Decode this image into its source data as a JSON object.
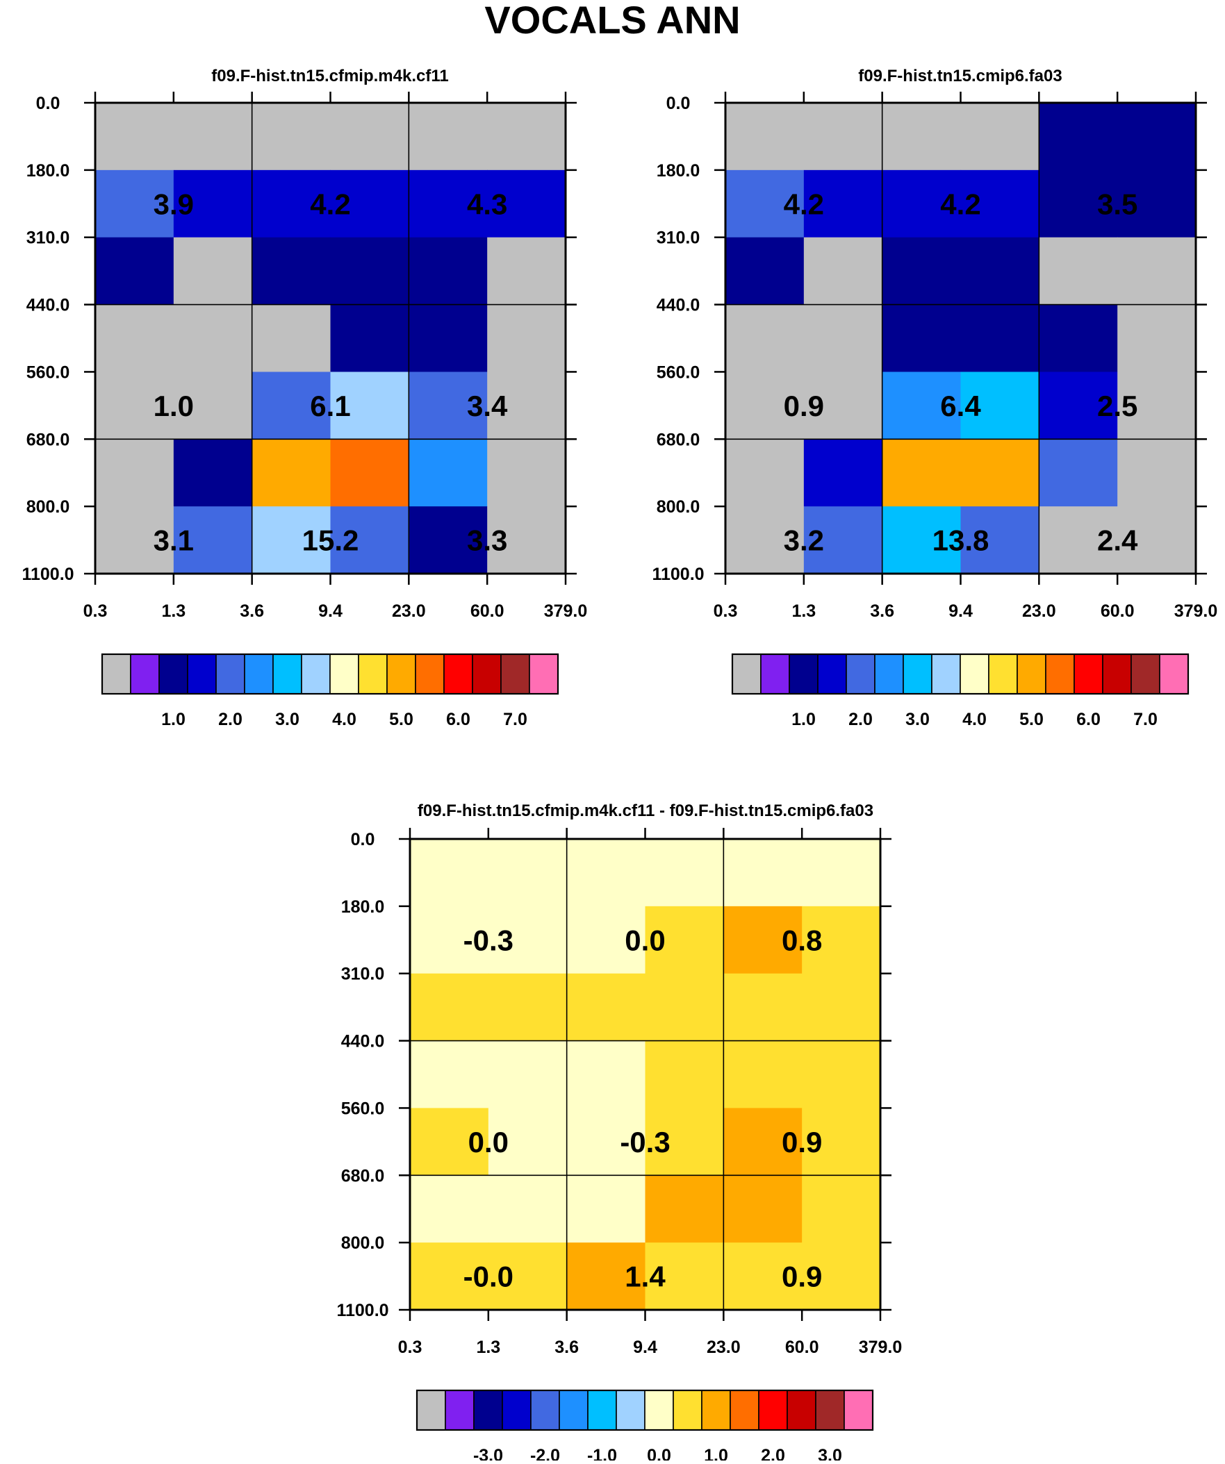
{
  "figure_title": "VOCALS ANN",
  "chart_data": [
    {
      "type": "heatmap",
      "id": "p1",
      "title": "f09.F-hist.tn15.cfmip.m4k.cf11",
      "xticks": [
        "0.3",
        "1.3",
        "3.6",
        "9.4",
        "23.0",
        "60.0",
        "379.0"
      ],
      "yticks": [
        "0.0",
        "180.0",
        "310.0",
        "440.0",
        "560.0",
        "680.0",
        "800.0",
        "1100.0"
      ],
      "cells": [
        [
          0,
          0,
          0,
          0,
          0,
          0
        ],
        [
          4,
          3,
          3,
          3,
          3,
          3
        ],
        [
          2,
          0,
          2,
          2,
          2,
          0
        ],
        [
          0,
          0,
          0,
          2,
          2,
          0
        ],
        [
          0,
          0,
          4,
          7,
          4,
          0
        ],
        [
          0,
          2,
          10,
          11,
          5,
          0
        ],
        [
          0,
          4,
          7,
          4,
          2,
          0
        ]
      ],
      "labels": [
        {
          "row": 1,
          "col": 1,
          "text": "3.9"
        },
        {
          "row": 1,
          "col": 3,
          "text": "4.2"
        },
        {
          "row": 1,
          "col": 5,
          "text": "4.3"
        },
        {
          "row": 4,
          "col": 1,
          "text": "1.0"
        },
        {
          "row": 4,
          "col": 3,
          "text": "6.1"
        },
        {
          "row": 4,
          "col": 5,
          "text": "3.4"
        },
        {
          "row": 6,
          "col": 1,
          "text": "3.1"
        },
        {
          "row": 6,
          "col": 3,
          "text": "15.2"
        },
        {
          "row": 6,
          "col": 5,
          "text": "3.3"
        }
      ],
      "colorbar": {
        "labels": [
          "1.0",
          "2.0",
          "3.0",
          "4.0",
          "5.0",
          "6.0",
          "7.0"
        ]
      }
    },
    {
      "type": "heatmap",
      "id": "p2",
      "title": "f09.F-hist.tn15.cmip6.fa03",
      "xticks": [
        "0.3",
        "1.3",
        "3.6",
        "9.4",
        "23.0",
        "60.0",
        "379.0"
      ],
      "yticks": [
        "0.0",
        "180.0",
        "310.0",
        "440.0",
        "560.0",
        "680.0",
        "800.0",
        "1100.0"
      ],
      "cells": [
        [
          0,
          0,
          0,
          0,
          2,
          2
        ],
        [
          4,
          3,
          3,
          3,
          2,
          2
        ],
        [
          2,
          0,
          2,
          2,
          0,
          0
        ],
        [
          0,
          0,
          2,
          2,
          2,
          0
        ],
        [
          0,
          0,
          5,
          6,
          3,
          0
        ],
        [
          0,
          3,
          10,
          10,
          4,
          0
        ],
        [
          0,
          4,
          6,
          4,
          0,
          0
        ]
      ],
      "labels": [
        {
          "row": 1,
          "col": 1,
          "text": "4.2"
        },
        {
          "row": 1,
          "col": 3,
          "text": "4.2"
        },
        {
          "row": 1,
          "col": 5,
          "text": "3.5"
        },
        {
          "row": 4,
          "col": 1,
          "text": "0.9"
        },
        {
          "row": 4,
          "col": 3,
          "text": "6.4"
        },
        {
          "row": 4,
          "col": 5,
          "text": "2.5"
        },
        {
          "row": 6,
          "col": 1,
          "text": "3.2"
        },
        {
          "row": 6,
          "col": 3,
          "text": "13.8"
        },
        {
          "row": 6,
          "col": 5,
          "text": "2.4"
        }
      ],
      "colorbar": {
        "labels": [
          "1.0",
          "2.0",
          "3.0",
          "4.0",
          "5.0",
          "6.0",
          "7.0"
        ]
      }
    },
    {
      "type": "heatmap",
      "id": "p3",
      "title": "f09.F-hist.tn15.cfmip.m4k.cf11 - f09.F-hist.tn15.cmip6.fa03",
      "xticks": [
        "0.3",
        "1.3",
        "3.6",
        "9.4",
        "23.0",
        "60.0",
        "379.0"
      ],
      "yticks": [
        "0.0",
        "180.0",
        "310.0",
        "440.0",
        "560.0",
        "680.0",
        "800.0",
        "1100.0"
      ],
      "cells": [
        [
          8,
          8,
          8,
          8,
          8,
          8
        ],
        [
          8,
          8,
          8,
          9,
          10,
          9
        ],
        [
          9,
          9,
          9,
          9,
          9,
          9
        ],
        [
          8,
          8,
          8,
          9,
          9,
          9
        ],
        [
          9,
          8,
          8,
          9,
          10,
          9
        ],
        [
          8,
          8,
          8,
          10,
          10,
          9
        ],
        [
          9,
          9,
          10,
          9,
          9,
          9
        ]
      ],
      "labels": [
        {
          "row": 1,
          "col": 1,
          "text": "-0.3"
        },
        {
          "row": 1,
          "col": 3,
          "text": "0.0"
        },
        {
          "row": 1,
          "col": 5,
          "text": "0.8"
        },
        {
          "row": 4,
          "col": 1,
          "text": "0.0"
        },
        {
          "row": 4,
          "col": 3,
          "text": "-0.3"
        },
        {
          "row": 4,
          "col": 5,
          "text": "0.9"
        },
        {
          "row": 6,
          "col": 1,
          "text": "-0.0"
        },
        {
          "row": 6,
          "col": 3,
          "text": "1.4"
        },
        {
          "row": 6,
          "col": 5,
          "text": "0.9"
        }
      ],
      "colorbar": {
        "labels": [
          "-3.0",
          "-2.0",
          "-1.0",
          "0.0",
          "1.0",
          "2.0",
          "3.0"
        ]
      }
    }
  ],
  "palette": [
    "#c0c0c0",
    "#8020f0",
    "#00008f",
    "#0000cd",
    "#4169e1",
    "#1e90ff",
    "#00bfff",
    "#a0d2ff",
    "#ffffc8",
    "#ffe030",
    "#ffaa00",
    "#ff6e00",
    "#ff0000",
    "#c80000",
    "#a02828",
    "#ff6eb4"
  ]
}
